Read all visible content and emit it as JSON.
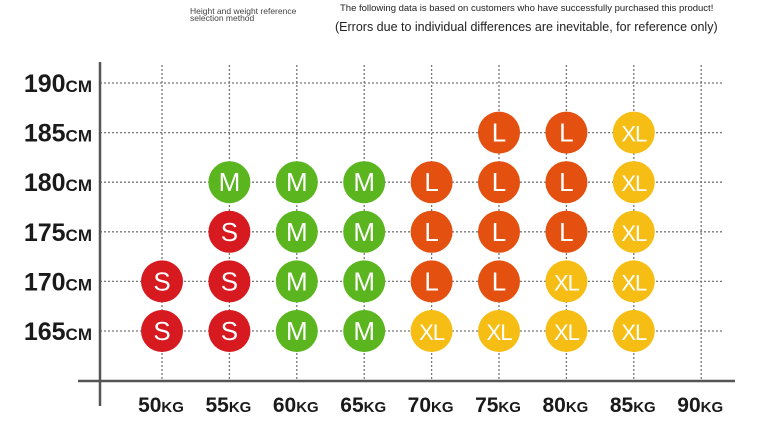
{
  "header": {
    "title": "Height and weight reference selection method",
    "note": "The following data is based on customers who have successfully purchased this product!",
    "disclaimer": "(Errors due to individual differences are inevitable, for reference only)"
  },
  "colors": {
    "S": "#d71920",
    "M": "#5bb51f",
    "L": "#e4500f",
    "XL": "#f6be14",
    "grid": "#777777",
    "axis": "#555555",
    "label": "#1a1a1a"
  },
  "chart_data": {
    "type": "table",
    "y_unit": "CM",
    "x_unit": "KG",
    "heights": [
      "190",
      "185",
      "180",
      "175",
      "170",
      "165"
    ],
    "weights": [
      "50",
      "55",
      "60",
      "65",
      "70",
      "75",
      "80",
      "85",
      "90"
    ],
    "cells": [
      {
        "height": "185",
        "weight": "75",
        "size": "L"
      },
      {
        "height": "185",
        "weight": "80",
        "size": "L"
      },
      {
        "height": "185",
        "weight": "85",
        "size": "XL"
      },
      {
        "height": "180",
        "weight": "55",
        "size": "M"
      },
      {
        "height": "180",
        "weight": "60",
        "size": "M"
      },
      {
        "height": "180",
        "weight": "65",
        "size": "M"
      },
      {
        "height": "180",
        "weight": "70",
        "size": "L"
      },
      {
        "height": "180",
        "weight": "75",
        "size": "L"
      },
      {
        "height": "180",
        "weight": "80",
        "size": "L"
      },
      {
        "height": "180",
        "weight": "85",
        "size": "XL"
      },
      {
        "height": "175",
        "weight": "55",
        "size": "S"
      },
      {
        "height": "175",
        "weight": "60",
        "size": "M"
      },
      {
        "height": "175",
        "weight": "65",
        "size": "M"
      },
      {
        "height": "175",
        "weight": "70",
        "size": "L"
      },
      {
        "height": "175",
        "weight": "75",
        "size": "L"
      },
      {
        "height": "175",
        "weight": "80",
        "size": "L"
      },
      {
        "height": "175",
        "weight": "85",
        "size": "XL"
      },
      {
        "height": "170",
        "weight": "50",
        "size": "S"
      },
      {
        "height": "170",
        "weight": "55",
        "size": "S"
      },
      {
        "height": "170",
        "weight": "60",
        "size": "M"
      },
      {
        "height": "170",
        "weight": "65",
        "size": "M"
      },
      {
        "height": "170",
        "weight": "70",
        "size": "L"
      },
      {
        "height": "170",
        "weight": "75",
        "size": "L"
      },
      {
        "height": "170",
        "weight": "80",
        "size": "XL"
      },
      {
        "height": "170",
        "weight": "85",
        "size": "XL"
      },
      {
        "height": "165",
        "weight": "50",
        "size": "S"
      },
      {
        "height": "165",
        "weight": "55",
        "size": "S"
      },
      {
        "height": "165",
        "weight": "60",
        "size": "M"
      },
      {
        "height": "165",
        "weight": "65",
        "size": "M"
      },
      {
        "height": "165",
        "weight": "70",
        "size": "XL"
      },
      {
        "height": "165",
        "weight": "75",
        "size": "XL"
      },
      {
        "height": "165",
        "weight": "80",
        "size": "XL"
      },
      {
        "height": "165",
        "weight": "85",
        "size": "XL"
      }
    ]
  }
}
